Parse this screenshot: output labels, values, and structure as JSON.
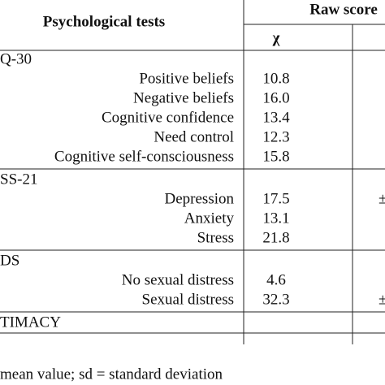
{
  "header": {
    "column_title": "Psychological tests",
    "score_title": "Raw score",
    "mean_symbol": "χ"
  },
  "groups": [
    {
      "label": "Q-30",
      "rows": [
        {
          "label": "Positive beliefs",
          "value": "10.8"
        },
        {
          "label": "Negative beliefs",
          "value": "16.0"
        },
        {
          "label": "Cognitive confidence",
          "value": "13.4"
        },
        {
          "label": "Need control",
          "value": "12.3"
        },
        {
          "label": "Cognitive self-consciousness",
          "value": "15.8"
        }
      ]
    },
    {
      "label": "SS-21",
      "rows": [
        {
          "label": "Depression",
          "value": "17.5",
          "extra": "±"
        },
        {
          "label": "Anxiety",
          "value": "13.1"
        },
        {
          "label": "Stress",
          "value": "21.8"
        }
      ]
    },
    {
      "label": "DS",
      "rows": [
        {
          "label": "No sexual distress",
          "value": "4.6"
        },
        {
          "label": "Sexual distress",
          "value": "32.3",
          "extra": "±"
        }
      ]
    },
    {
      "label": "TIMACY",
      "rows": []
    }
  ],
  "footer": "mean value; sd = standard deviation"
}
